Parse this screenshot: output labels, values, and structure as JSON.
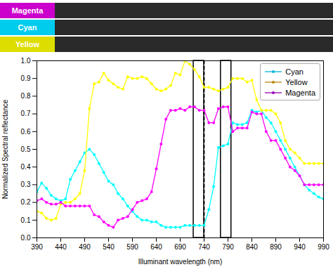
{
  "chart_data": {
    "type": "line",
    "xlabel": "Illuminant wavelength (nm)",
    "ylabel": "Normalized Spectral reflectance",
    "x": [
      390,
      400,
      410,
      420,
      430,
      440,
      450,
      460,
      470,
      480,
      490,
      500,
      510,
      520,
      530,
      540,
      550,
      560,
      570,
      580,
      590,
      600,
      610,
      620,
      630,
      640,
      650,
      660,
      670,
      680,
      690,
      700,
      710,
      720,
      730,
      740,
      750,
      760,
      770,
      780,
      790,
      800,
      810,
      820,
      830,
      840,
      850,
      860,
      870,
      880,
      890,
      900,
      910,
      920,
      930,
      940,
      950,
      960,
      970,
      980,
      990
    ],
    "series": [
      {
        "name": "Cyan",
        "color": "#00b4d8",
        "marker": "circle",
        "line_style": "solid",
        "values": [
          0.26,
          0.31,
          0.28,
          0.24,
          0.22,
          0.21,
          0.22,
          0.33,
          0.38,
          0.43,
          0.48,
          0.5,
          0.47,
          0.42,
          0.37,
          0.32,
          0.3,
          0.25,
          0.22,
          0.18,
          0.15,
          0.12,
          0.1,
          0.1,
          0.09,
          0.09,
          0.07,
          0.06,
          0.06,
          0.06,
          0.06,
          0.07,
          0.07,
          0.07,
          0.07,
          0.07,
          0.16,
          0.29,
          0.51,
          0.52,
          0.53,
          0.65,
          0.64,
          0.64,
          0.65,
          0.72,
          0.71,
          0.72,
          0.68,
          0.65,
          0.6,
          0.55,
          0.5,
          0.45,
          0.4,
          0.35,
          0.3,
          0.27,
          0.25,
          0.23,
          0.22
        ]
      },
      {
        "name": "Yellow",
        "color": "#b8860b",
        "marker": "circle",
        "line_style": "solid",
        "values": [
          0.15,
          0.14,
          0.11,
          0.1,
          0.11,
          0.19,
          0.2,
          0.2,
          0.22,
          0.25,
          0.38,
          0.73,
          0.87,
          0.88,
          0.93,
          0.89,
          0.87,
          0.85,
          0.84,
          0.91,
          0.9,
          0.9,
          0.91,
          0.9,
          0.87,
          0.84,
          0.83,
          0.84,
          0.86,
          0.93,
          0.92,
          1.0,
          0.98,
          0.95,
          0.91,
          0.85,
          0.85,
          0.84,
          0.83,
          0.84,
          0.85,
          0.9,
          0.9,
          0.9,
          0.88,
          0.89,
          0.78,
          0.72,
          0.72,
          0.72,
          0.7,
          0.65,
          0.55,
          0.5,
          0.48,
          0.45,
          0.42,
          0.42,
          0.42,
          0.42,
          0.42
        ]
      },
      {
        "name": "Magenta",
        "color": "#9900bb",
        "marker": "circle",
        "line_style": "solid",
        "values": [
          0.21,
          0.22,
          0.2,
          0.19,
          0.19,
          0.2,
          0.18,
          0.18,
          0.18,
          0.18,
          0.18,
          0.18,
          0.13,
          0.12,
          0.09,
          0.07,
          0.06,
          0.1,
          0.11,
          0.12,
          0.16,
          0.2,
          0.21,
          0.22,
          0.26,
          0.39,
          0.53,
          0.67,
          0.72,
          0.72,
          0.73,
          0.72,
          0.74,
          0.74,
          0.72,
          0.72,
          0.65,
          0.65,
          0.73,
          0.74,
          0.74,
          0.6,
          0.62,
          0.62,
          0.62,
          0.71,
          0.7,
          0.7,
          0.6,
          0.55,
          0.55,
          0.5,
          0.45,
          0.4,
          0.38,
          0.35,
          0.3,
          0.3,
          0.3,
          0.3,
          0.3
        ]
      }
    ],
    "xlim": [
      390,
      990
    ],
    "ylim": [
      0.0,
      1.0
    ],
    "xticks": [
      390,
      440,
      490,
      540,
      590,
      640,
      690,
      740,
      790,
      840,
      890,
      940,
      990
    ],
    "yticks": [
      {
        "value": 0.0,
        "label": "0.0"
      },
      0.1,
      0.2,
      0.3,
      0.4,
      0.5,
      0.6,
      0.7,
      0.8,
      0.9,
      {
        "value": 1.0,
        "label": "1.0"
      }
    ],
    "vlines": [
      740
    ],
    "bands": [
      {
        "x": 718,
        "width": 22
      },
      {
        "x": 775,
        "width": 22
      }
    ],
    "annotations": [
      {
        "text": "Magenta",
        "color": "#cc00cc"
      },
      {
        "text": "Cyan",
        "color": "#00ccee"
      },
      {
        "text": "Yellow",
        "color": "#dddd00"
      }
    ],
    "legend": "upper right",
    "grid": false
  }
}
